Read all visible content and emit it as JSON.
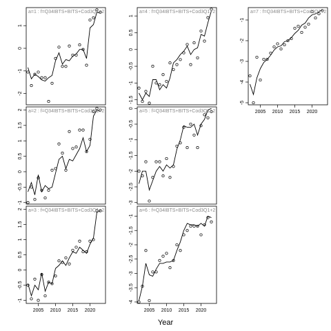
{
  "figure": {
    "xlabel": "Year"
  },
  "chart_data": [
    {
      "type": "scatter",
      "title": "a=1 : f=Q34IBTS+BITS+Cod3Q1+2",
      "xlabel": "",
      "ylabel": "",
      "xlim": [
        2001.5,
        2024.5
      ],
      "ylim": [
        -2.5,
        1.8
      ],
      "xticks": [
        2005,
        2010,
        2015,
        2020
      ],
      "show_xticks": false,
      "yticks": [
        -2,
        -1,
        0,
        1
      ],
      "series": [
        {
          "kind": "points",
          "x": [
            2002,
            2003,
            2004,
            2005,
            2006,
            2007,
            2008,
            2009,
            2010,
            2011,
            2012,
            2013,
            2014,
            2015,
            2016,
            2017,
            2018,
            2019,
            2020,
            2021,
            2022,
            2023
          ],
          "y": [
            -1.05,
            -1.65,
            -1.15,
            -1.05,
            -1.3,
            -1.3,
            -2.35,
            -1.55,
            -0.45,
            0.05,
            -0.8,
            -0.8,
            0.1,
            -0.3,
            -0.3,
            0.15,
            -0.05,
            -0.75,
            1.25,
            1.35,
            1.7,
            1.6
          ]
        },
        {
          "kind": "line",
          "x": [
            2002,
            2003,
            2004,
            2005,
            2006,
            2007,
            2008,
            2009,
            2010,
            2011,
            2012,
            2013,
            2014,
            2015,
            2016,
            2017,
            2018,
            2019,
            2020,
            2021,
            2022,
            2023
          ],
          "y": [
            -0.85,
            -1.35,
            -1.15,
            -1.25,
            -1.4,
            -1.45,
            -1.3,
            -1.2,
            -0.55,
            -0.2,
            -0.7,
            -0.5,
            -0.55,
            -0.35,
            -0.25,
            -0.05,
            -0.05,
            -0.45,
            0.9,
            1.05,
            1.6,
            1.55
          ]
        }
      ]
    },
    {
      "type": "scatter",
      "title": "a=2 : f=Q34IBTS+BITS+Cod3Q1+2",
      "xlabel": "",
      "ylabel": "",
      "xlim": [
        2001.5,
        2024.5
      ],
      "ylim": [
        -1.05,
        2.1
      ],
      "xticks": [
        2005,
        2010,
        2015,
        2020
      ],
      "show_xticks": false,
      "yticks": [
        -1.0,
        -0.5,
        0.0,
        0.5,
        1.0,
        1.5,
        2.0
      ],
      "series": [
        {
          "kind": "points",
          "x": [
            2002,
            2003,
            2004,
            2005,
            2006,
            2007,
            2008,
            2009,
            2010,
            2011,
            2012,
            2013,
            2014,
            2015,
            2016,
            2017,
            2018,
            2019,
            2020,
            2021,
            2022,
            2023
          ],
          "y": [
            -1.0,
            -0.5,
            -0.9,
            -0.2,
            -0.6,
            -0.85,
            -0.6,
            0.05,
            0.1,
            0.9,
            0.6,
            0.05,
            1.3,
            0.75,
            0.8,
            1.35,
            1.35,
            0.65,
            1.05,
            1.95,
            2.05,
            2.0
          ]
        },
        {
          "kind": "line",
          "x": [
            2002,
            2003,
            2004,
            2005,
            2006,
            2007,
            2008,
            2009,
            2010,
            2011,
            2012,
            2013,
            2014,
            2015,
            2016,
            2017,
            2018,
            2019,
            2020,
            2021,
            2022,
            2023
          ],
          "y": [
            -0.65,
            -0.35,
            -0.75,
            -0.1,
            -0.65,
            -0.45,
            -0.55,
            -0.5,
            -0.05,
            0.4,
            0.5,
            0.1,
            0.4,
            0.35,
            0.55,
            0.75,
            1.1,
            0.65,
            0.85,
            1.8,
            2.0,
            1.95
          ]
        }
      ]
    },
    {
      "type": "scatter",
      "title": "a=3 : f=Q34IBTS+BITS+Cod3Q1+2",
      "xlabel": "",
      "ylabel": "",
      "xlim": [
        2001.5,
        2024.5
      ],
      "ylim": [
        -1.1,
        2.1
      ],
      "xticks": [
        2005,
        2010,
        2015,
        2020
      ],
      "show_xticks": true,
      "yticks": [
        -1.0,
        -0.5,
        0.0,
        0.5,
        1.0,
        1.5,
        2.0
      ],
      "series": [
        {
          "kind": "points",
          "x": [
            2002,
            2003,
            2004,
            2005,
            2006,
            2007,
            2008,
            2009,
            2010,
            2011,
            2012,
            2013,
            2014,
            2015,
            2016,
            2017,
            2018,
            2019,
            2020,
            2021,
            2022,
            2023
          ],
          "y": [
            -0.5,
            -0.95,
            -0.3,
            -1.0,
            -0.15,
            -0.85,
            -0.4,
            -0.45,
            -0.2,
            0.3,
            0.25,
            0.4,
            0.2,
            0.65,
            0.75,
            0.95,
            0.6,
            0.6,
            0.95,
            1.0,
            1.95,
            1.95
          ]
        },
        {
          "kind": "line",
          "x": [
            2002,
            2003,
            2004,
            2005,
            2006,
            2007,
            2008,
            2009,
            2010,
            2011,
            2012,
            2013,
            2014,
            2015,
            2016,
            2017,
            2018,
            2019,
            2020,
            2021,
            2022,
            2023
          ],
          "y": [
            -0.45,
            -0.85,
            -0.5,
            -0.65,
            -0.1,
            -0.7,
            -0.4,
            -0.45,
            0.05,
            0.15,
            0.3,
            0.15,
            0.4,
            0.6,
            0.55,
            0.75,
            0.65,
            0.55,
            0.85,
            1.05,
            1.9,
            1.95
          ]
        }
      ]
    },
    {
      "type": "scatter",
      "title": "a=4 : f=Q34IBTS+BITS+Cod3Q1+2",
      "xlabel": "",
      "ylabel": "",
      "xlim": [
        2001.5,
        2024.5
      ],
      "ylim": [
        -1.65,
        1.25
      ],
      "xticks": [
        2005,
        2010,
        2015,
        2020
      ],
      "show_xticks": false,
      "yticks": [
        -1.5,
        -1.0,
        -0.5,
        0.0,
        0.5,
        1.0
      ],
      "series": [
        {
          "kind": "points",
          "x": [
            2002,
            2003,
            2004,
            2005,
            2006,
            2007,
            2008,
            2009,
            2010,
            2011,
            2012,
            2013,
            2014,
            2015,
            2016,
            2017,
            2018,
            2019,
            2020,
            2021,
            2022,
            2023
          ],
          "y": [
            -1.15,
            -1.55,
            -1.25,
            -1.6,
            -0.5,
            -1.0,
            -1.05,
            -0.75,
            -0.95,
            -0.4,
            -0.6,
            -0.45,
            -0.3,
            -0.1,
            0.15,
            -0.45,
            0.2,
            -0.25,
            0.55,
            0.25,
            0.95,
            1.2
          ]
        },
        {
          "kind": "line",
          "x": [
            2002,
            2003,
            2004,
            2005,
            2006,
            2007,
            2008,
            2009,
            2010,
            2011,
            2012,
            2013,
            2014,
            2015,
            2016,
            2017,
            2018,
            2019,
            2020,
            2021,
            2022,
            2023
          ],
          "y": [
            -1.3,
            -1.5,
            -1.3,
            -1.4,
            -0.9,
            -0.9,
            -1.2,
            -1.05,
            -1.15,
            -0.85,
            -0.4,
            -0.3,
            -0.15,
            -0.05,
            0.1,
            -0.15,
            0.0,
            0.05,
            0.45,
            0.4,
            0.8,
            1.15
          ]
        }
      ]
    },
    {
      "type": "scatter",
      "title": "a=5 : f=Q34IBTS+BITS+Cod3Q1+2",
      "xlabel": "",
      "ylabel": "",
      "xlim": [
        2001.5,
        2024.5
      ],
      "ylim": [
        -3.05,
        0.05
      ],
      "xticks": [
        2005,
        2010,
        2015,
        2020
      ],
      "show_xticks": false,
      "yticks": [
        -3.0,
        -2.5,
        -2.0,
        -1.5,
        -1.0,
        -0.5,
        0.0
      ],
      "series": [
        {
          "kind": "points",
          "x": [
            2002,
            2003,
            2004,
            2005,
            2006,
            2007,
            2008,
            2009,
            2010,
            2011,
            2012,
            2013,
            2014,
            2015,
            2016,
            2017,
            2018,
            2019,
            2020,
            2021,
            2022,
            2023
          ],
          "y": [
            -2.0,
            -2.15,
            -1.7,
            -2.95,
            -2.2,
            -1.7,
            -1.7,
            -2.15,
            -1.6,
            -2.2,
            -1.85,
            -1.2,
            -1.1,
            -0.6,
            -1.25,
            -0.5,
            -0.85,
            -1.25,
            -0.55,
            -0.2,
            -0.3,
            -0.1
          ]
        },
        {
          "kind": "line",
          "x": [
            2002,
            2003,
            2004,
            2005,
            2006,
            2007,
            2008,
            2009,
            2010,
            2011,
            2012,
            2013,
            2014,
            2015,
            2016,
            2017,
            2018,
            2019,
            2020,
            2021,
            2022,
            2023
          ],
          "y": [
            -2.4,
            -2.0,
            -2.0,
            -2.6,
            -2.3,
            -2.0,
            -1.85,
            -2.0,
            -1.8,
            -1.9,
            -1.8,
            -1.3,
            -1.0,
            -0.55,
            -0.6,
            -0.6,
            -0.5,
            -0.85,
            -0.5,
            -0.35,
            -0.05,
            0.0
          ]
        }
      ]
    },
    {
      "type": "scatter",
      "title": "a=6 : f=Q34IBTS+BITS+Cod3Q1+2",
      "xlabel": "",
      "ylabel": "",
      "xlim": [
        2001.5,
        2024.5
      ],
      "ylim": [
        -4.05,
        -0.65
      ],
      "xticks": [
        2005,
        2010,
        2015,
        2020
      ],
      "show_xticks": true,
      "yticks": [
        -4.0,
        -3.5,
        -3.0,
        -2.5,
        -2.0,
        -1.5,
        -1.0
      ],
      "series": [
        {
          "kind": "points",
          "x": [
            2002,
            2003,
            2004,
            2005,
            2006,
            2007,
            2008,
            2009,
            2010,
            2011,
            2012,
            2013,
            2014,
            2015,
            2016,
            2017,
            2018,
            2019,
            2020,
            2021,
            2022,
            2023
          ],
          "y": [
            -4.0,
            -3.45,
            -2.2,
            -3.95,
            -2.95,
            -2.95,
            -2.55,
            -2.4,
            -2.3,
            -2.8,
            -2.55,
            -2.0,
            -2.2,
            -1.65,
            -1.5,
            -1.35,
            -1.35,
            -1.35,
            -1.65,
            -1.3,
            -1.05,
            -1.2
          ]
        },
        {
          "kind": "line",
          "x": [
            2002,
            2003,
            2004,
            2005,
            2006,
            2007,
            2008,
            2009,
            2010,
            2011,
            2012,
            2013,
            2014,
            2015,
            2016,
            2017,
            2018,
            2019,
            2020,
            2021,
            2022,
            2023
          ],
          "y": [
            -3.95,
            -3.45,
            -2.65,
            -3.05,
            -3.1,
            -2.85,
            -2.65,
            -2.65,
            -2.6,
            -2.6,
            -2.55,
            -2.2,
            -1.9,
            -1.5,
            -1.25,
            -1.3,
            -1.3,
            -1.35,
            -1.25,
            -1.35,
            -1.0,
            -1.05
          ]
        }
      ]
    },
    {
      "type": "scatter",
      "title": "a=7 : f=Q34IBTS+BITS+Cod3Q1+2",
      "xlabel": "",
      "ylabel": "",
      "xlim": [
        2001.5,
        2024.5
      ],
      "ylim": [
        -5.1,
        -0.4
      ],
      "xticks": [
        2005,
        2010,
        2015,
        2020
      ],
      "show_xticks": true,
      "yticks": [
        -5,
        -4,
        -3,
        -2,
        -1
      ],
      "series": [
        {
          "kind": "points",
          "x": [
            2002,
            2003,
            2004,
            2005,
            2006,
            2007,
            2008,
            2009,
            2010,
            2011,
            2012,
            2013,
            2014,
            2015,
            2016,
            2017,
            2018,
            2019,
            2020,
            2021,
            2022,
            2023
          ],
          "y": [
            -3.7,
            -5.0,
            -2.8,
            -3.9,
            -2.9,
            -2.9,
            -2.6,
            -2.3,
            -2.15,
            -2.4,
            -2.2,
            -2.0,
            -1.9,
            -1.4,
            -1.3,
            -1.6,
            -1.35,
            -1.2,
            -0.6,
            -0.9,
            -0.7,
            -0.55
          ]
        },
        {
          "kind": "line",
          "x": [
            2002,
            2003,
            2004,
            2005,
            2006,
            2007,
            2008,
            2009,
            2010,
            2011,
            2012,
            2013,
            2014,
            2015,
            2016,
            2017,
            2018,
            2019,
            2020,
            2021,
            2022,
            2023
          ],
          "y": [
            -4.1,
            -4.6,
            -3.8,
            -3.35,
            -3.05,
            -2.9,
            -2.7,
            -2.45,
            -2.3,
            -2.25,
            -2.05,
            -2.0,
            -1.85,
            -1.65,
            -1.5,
            -1.25,
            -1.15,
            -0.9,
            -0.75,
            -0.7,
            -0.6,
            -0.5
          ]
        }
      ]
    }
  ]
}
